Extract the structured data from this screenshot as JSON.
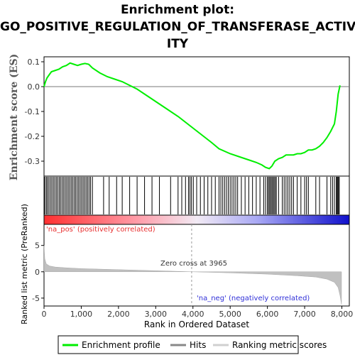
{
  "title_lines": [
    "Enrichment plot:",
    "GO_POSITIVE_REGULATION_OF_TRANSFERASE_ACTIV",
    "ITY"
  ],
  "chart_data": {
    "type": "line",
    "title": "Enrichment plot: GO_POSITIVE_REGULATION_OF_TRANSFERASE_ACTIVITY",
    "xlabel": "Rank in Ordered Dataset",
    "xlim": [
      0,
      8200
    ],
    "x_ticks": [
      "0",
      "1,000",
      "2,000",
      "3,000",
      "4,000",
      "5,000",
      "6,000",
      "7,000",
      "8,000"
    ],
    "x_tick_values": [
      0,
      1000,
      2000,
      3000,
      4000,
      5000,
      6000,
      7000,
      8000
    ],
    "es_panel": {
      "ylabel": "Enrichment score (ES)",
      "ylim": [
        -0.36,
        0.12
      ],
      "y_ticks": [
        "0.1",
        "0.0",
        "-0.1",
        "-0.2",
        "-0.3"
      ],
      "y_tick_values": [
        0.1,
        0.0,
        -0.1,
        -0.2,
        -0.3
      ],
      "line_color": "#00ee00",
      "series": [
        {
          "name": "Enrichment profile",
          "x": [
            0,
            40,
            80,
            150,
            200,
            300,
            400,
            500,
            600,
            700,
            800,
            900,
            1000,
            1100,
            1200,
            1300,
            1500,
            1700,
            1900,
            2100,
            2300,
            2500,
            2700,
            3000,
            3300,
            3600,
            3900,
            4200,
            4500,
            4700,
            5000,
            5300,
            5500,
            5700,
            5850,
            5950,
            6050,
            6120,
            6200,
            6300,
            6400,
            6500,
            6600,
            6700,
            6800,
            6900,
            7000,
            7100,
            7200,
            7300,
            7400,
            7500,
            7600,
            7700,
            7800,
            7850,
            7900,
            7950
          ],
          "y": [
            0.0,
            0.02,
            0.035,
            0.05,
            0.06,
            0.065,
            0.07,
            0.08,
            0.085,
            0.095,
            0.09,
            0.085,
            0.09,
            0.093,
            0.09,
            0.075,
            0.055,
            0.04,
            0.03,
            0.02,
            0.005,
            -0.01,
            -0.03,
            -0.06,
            -0.09,
            -0.12,
            -0.155,
            -0.19,
            -0.225,
            -0.25,
            -0.27,
            -0.285,
            -0.295,
            -0.305,
            -0.315,
            -0.325,
            -0.33,
            -0.32,
            -0.3,
            -0.29,
            -0.285,
            -0.275,
            -0.275,
            -0.275,
            -0.27,
            -0.27,
            -0.265,
            -0.255,
            -0.255,
            -0.25,
            -0.24,
            -0.225,
            -0.205,
            -0.18,
            -0.15,
            -0.1,
            -0.03,
            0.005
          ]
        }
      ]
    },
    "hits": {
      "name": "Hits",
      "positions": [
        20,
        60,
        90,
        130,
        170,
        210,
        250,
        290,
        330,
        370,
        410,
        450,
        490,
        530,
        570,
        610,
        650,
        690,
        730,
        770,
        810,
        850,
        890,
        930,
        970,
        1010,
        1050,
        1090,
        1130,
        1170,
        1210,
        1250,
        1300,
        1600,
        1750,
        1950,
        2100,
        2300,
        2500,
        2700,
        2900,
        3100,
        3400,
        3600,
        3700,
        3800,
        3880,
        3920,
        3960,
        4010,
        4100,
        4200,
        4300,
        4400,
        4500,
        4600,
        4700,
        4750,
        4800,
        4850,
        4900,
        4950,
        5000,
        5050,
        5100,
        5150,
        5200,
        5300,
        5400,
        5500,
        5600,
        5700,
        5800,
        5900,
        5950,
        6000,
        6030,
        6060,
        6090,
        6120,
        6150,
        6180,
        6210,
        6240,
        6300,
        6400,
        6450,
        6500,
        6550,
        6600,
        6650,
        6700,
        6800,
        6900,
        7000,
        7050,
        7100,
        7300,
        7400,
        7600,
        7700,
        7750,
        7800,
        7850,
        7870,
        7890,
        7910,
        7930
      ]
    },
    "metric_panel": {
      "name": "Ranking metric scores",
      "ylabel": "Ranked list metric (PreRanked)",
      "ylim": [
        -6.5,
        9
      ],
      "y_ticks": [
        "5",
        "0",
        "-5"
      ],
      "y_tick_values": [
        5,
        0,
        -5
      ],
      "fill_color": "#c0c0c0",
      "x": [
        0,
        20,
        60,
        150,
        300,
        600,
        1000,
        2000,
        3000,
        3965,
        5000,
        6000,
        6800,
        7300,
        7600,
        7800,
        7900,
        7950,
        7990
      ],
      "y": [
        5,
        2.5,
        1.5,
        1.1,
        0.9,
        0.75,
        0.6,
        0.4,
        0.2,
        0.0,
        -0.2,
        -0.45,
        -0.75,
        -1.0,
        -1.4,
        -2.0,
        -3.0,
        -4.5,
        -6.2
      ]
    },
    "zero_cross": 3965,
    "annotations": {
      "zero_cross_label": "Zero cross at 3965",
      "pos_label": "'na_pos' (positively correlated)",
      "neg_label": "'na_neg' (negatively correlated)"
    },
    "legend": {
      "items": [
        "Enrichment profile",
        "Hits",
        "Ranking metric scores"
      ]
    }
  }
}
